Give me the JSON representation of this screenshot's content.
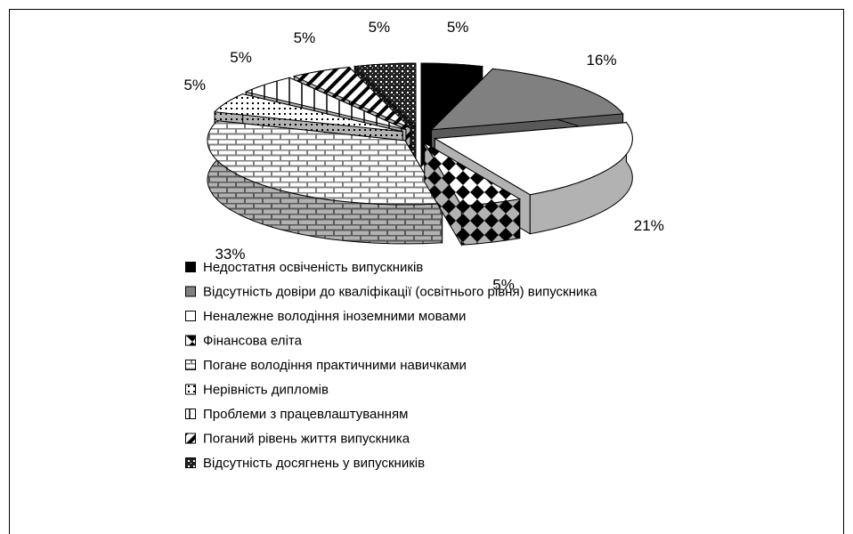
{
  "chart_data": {
    "type": "pie",
    "categories": [
      "Недостатня освіченість випускників",
      "Відсутність довіри до кваліфікації (освітнього рівня) випускника",
      "Неналежне володіння іноземними мовами",
      "Фінансова еліта",
      "Погане володіння практичними навичками",
      "Нерівність дипломів",
      "Проблеми з працевлаштуванням",
      "Поганий рівень життя випускника",
      "Відсутність досягнень у випускників"
    ],
    "values": [
      5,
      16,
      21,
      5,
      33,
      5,
      5,
      5,
      5
    ],
    "value_labels": [
      "5%",
      "16%",
      "21%",
      "5%",
      "33%",
      "5%",
      "5%",
      "5%",
      "5%"
    ],
    "colors": [
      "#000000",
      "#808080",
      "#ffffff",
      "#000000",
      "#808080",
      "#ffffff",
      "#ffffff",
      "#ffffff",
      "#333333"
    ],
    "legend": "bottom"
  }
}
